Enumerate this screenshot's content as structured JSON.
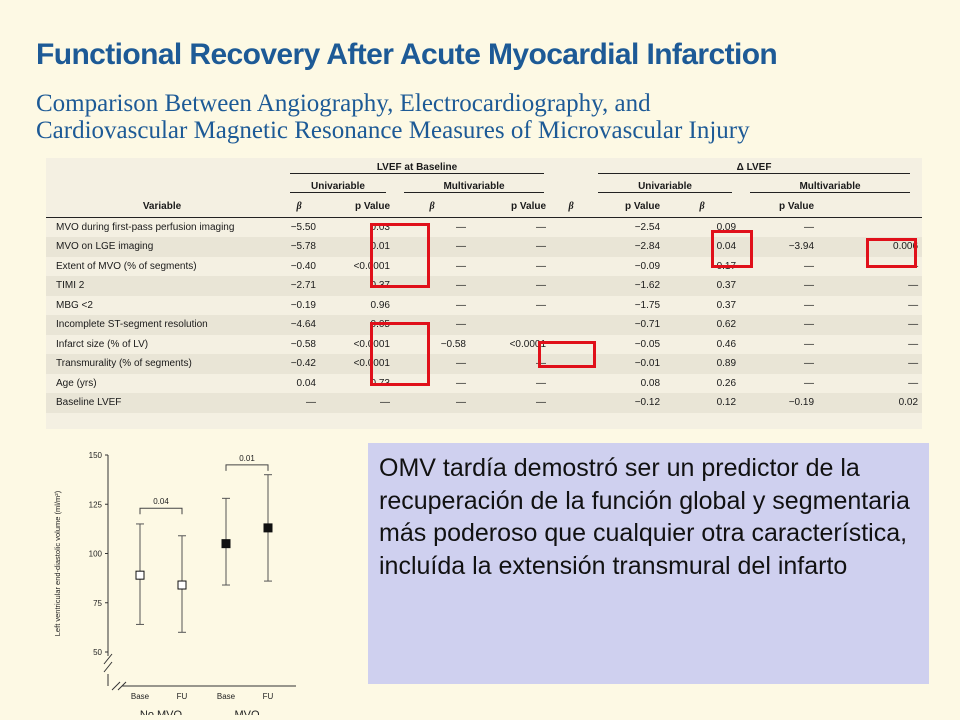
{
  "header": {
    "title": "Functional Recovery After Acute Myocardial Infarction",
    "subtitle_line1": "Comparison Between Angiography, Electrocardiography, and",
    "subtitle_line2": "Cardiovascular Magnetic Resonance Measures of Microvascular Injury"
  },
  "table": {
    "group1": "LVEF at Baseline",
    "group2": "Δ LVEF",
    "sub_uni": "Univariable",
    "sub_multi": "Multivariable",
    "col_variable": "Variable",
    "col_beta": "β",
    "col_p": "p Value",
    "rows": [
      {
        "variable": "MVO during first-pass perfusion imaging",
        "c": [
          "−5.50",
          "0.03",
          "—",
          "—",
          "−2.54",
          "0.09",
          "—",
          ""
        ]
      },
      {
        "variable": "MVO on LGE imaging",
        "c": [
          "−5.78",
          "0.01",
          "—",
          "—",
          "−2.84",
          "0.04",
          "−3.94",
          "0.006"
        ]
      },
      {
        "variable": "Extent of MVO (% of segments)",
        "c": [
          "−0.40",
          "<0.0001",
          "—",
          "—",
          "−0.09",
          "0.17",
          "—",
          "—"
        ]
      },
      {
        "variable": "TIMI 2",
        "c": [
          "−2.71",
          "0.37",
          "—",
          "—",
          "−1.62",
          "0.37",
          "—",
          "—"
        ]
      },
      {
        "variable": "MBG <2",
        "c": [
          "−0.19",
          "0.96",
          "—",
          "—",
          "−1.75",
          "0.37",
          "—",
          "—"
        ]
      },
      {
        "variable": "Incomplete ST-segment resolution",
        "c": [
          "−4.64",
          "0.05",
          "—",
          "",
          "−0.71",
          "0.62",
          "—",
          "—"
        ]
      },
      {
        "variable": "Infarct size (% of LV)",
        "c": [
          "−0.58",
          "<0.0001",
          "−0.58",
          "<0.0001",
          "−0.05",
          "0.46",
          "—",
          "—"
        ]
      },
      {
        "variable": "Transmurality (% of segments)",
        "c": [
          "−0.42",
          "<0.0001",
          "—",
          "—",
          "−0.01",
          "0.89",
          "—",
          "—"
        ]
      },
      {
        "variable": "Age (yrs)",
        "c": [
          "0.04",
          "0.73",
          "—",
          "—",
          "0.08",
          "0.26",
          "—",
          "—"
        ]
      },
      {
        "variable": "Baseline LVEF",
        "c": [
          "—",
          "—",
          "—",
          "—",
          "−0.12",
          "0.12",
          "−0.19",
          "0.02"
        ]
      }
    ]
  },
  "chart_data": {
    "type": "scatter",
    "ylabel": "Left ventricular end-diastolic volume (ml/m²)",
    "ylim": [
      50,
      150
    ],
    "yticks": [
      "150",
      "125",
      "100",
      "75",
      "50"
    ],
    "categories": [
      "Base",
      "FU",
      "Base",
      "FU"
    ],
    "groups": [
      "No MVO",
      "MVO"
    ],
    "series": [
      {
        "name": "No MVO",
        "marker": "open-square",
        "x": [
          "Base",
          "FU"
        ],
        "mean": [
          89,
          84
        ],
        "low": [
          64,
          60
        ],
        "high": [
          115,
          109
        ]
      },
      {
        "name": "MVO",
        "marker": "filled-square",
        "x": [
          "Base",
          "FU"
        ],
        "mean": [
          105,
          113
        ],
        "low": [
          84,
          86
        ],
        "high": [
          128,
          140
        ]
      }
    ],
    "annotations": [
      {
        "label": "0.04",
        "between": "No MVO Base–FU"
      },
      {
        "label": "0.01",
        "between": "MVO Base–FU"
      }
    ]
  },
  "note": {
    "text": "OMV tardía demostró ser un predictor de la recuperación de la función global y segmentaria más poderoso que cualquier otra característica, incluída la extensión transmural del infarto"
  },
  "colors": {
    "title": "#1d5a96",
    "highlight": "#e0101a",
    "note_bg": "#cfd0ef",
    "page_bg": "#fdf9e4"
  }
}
